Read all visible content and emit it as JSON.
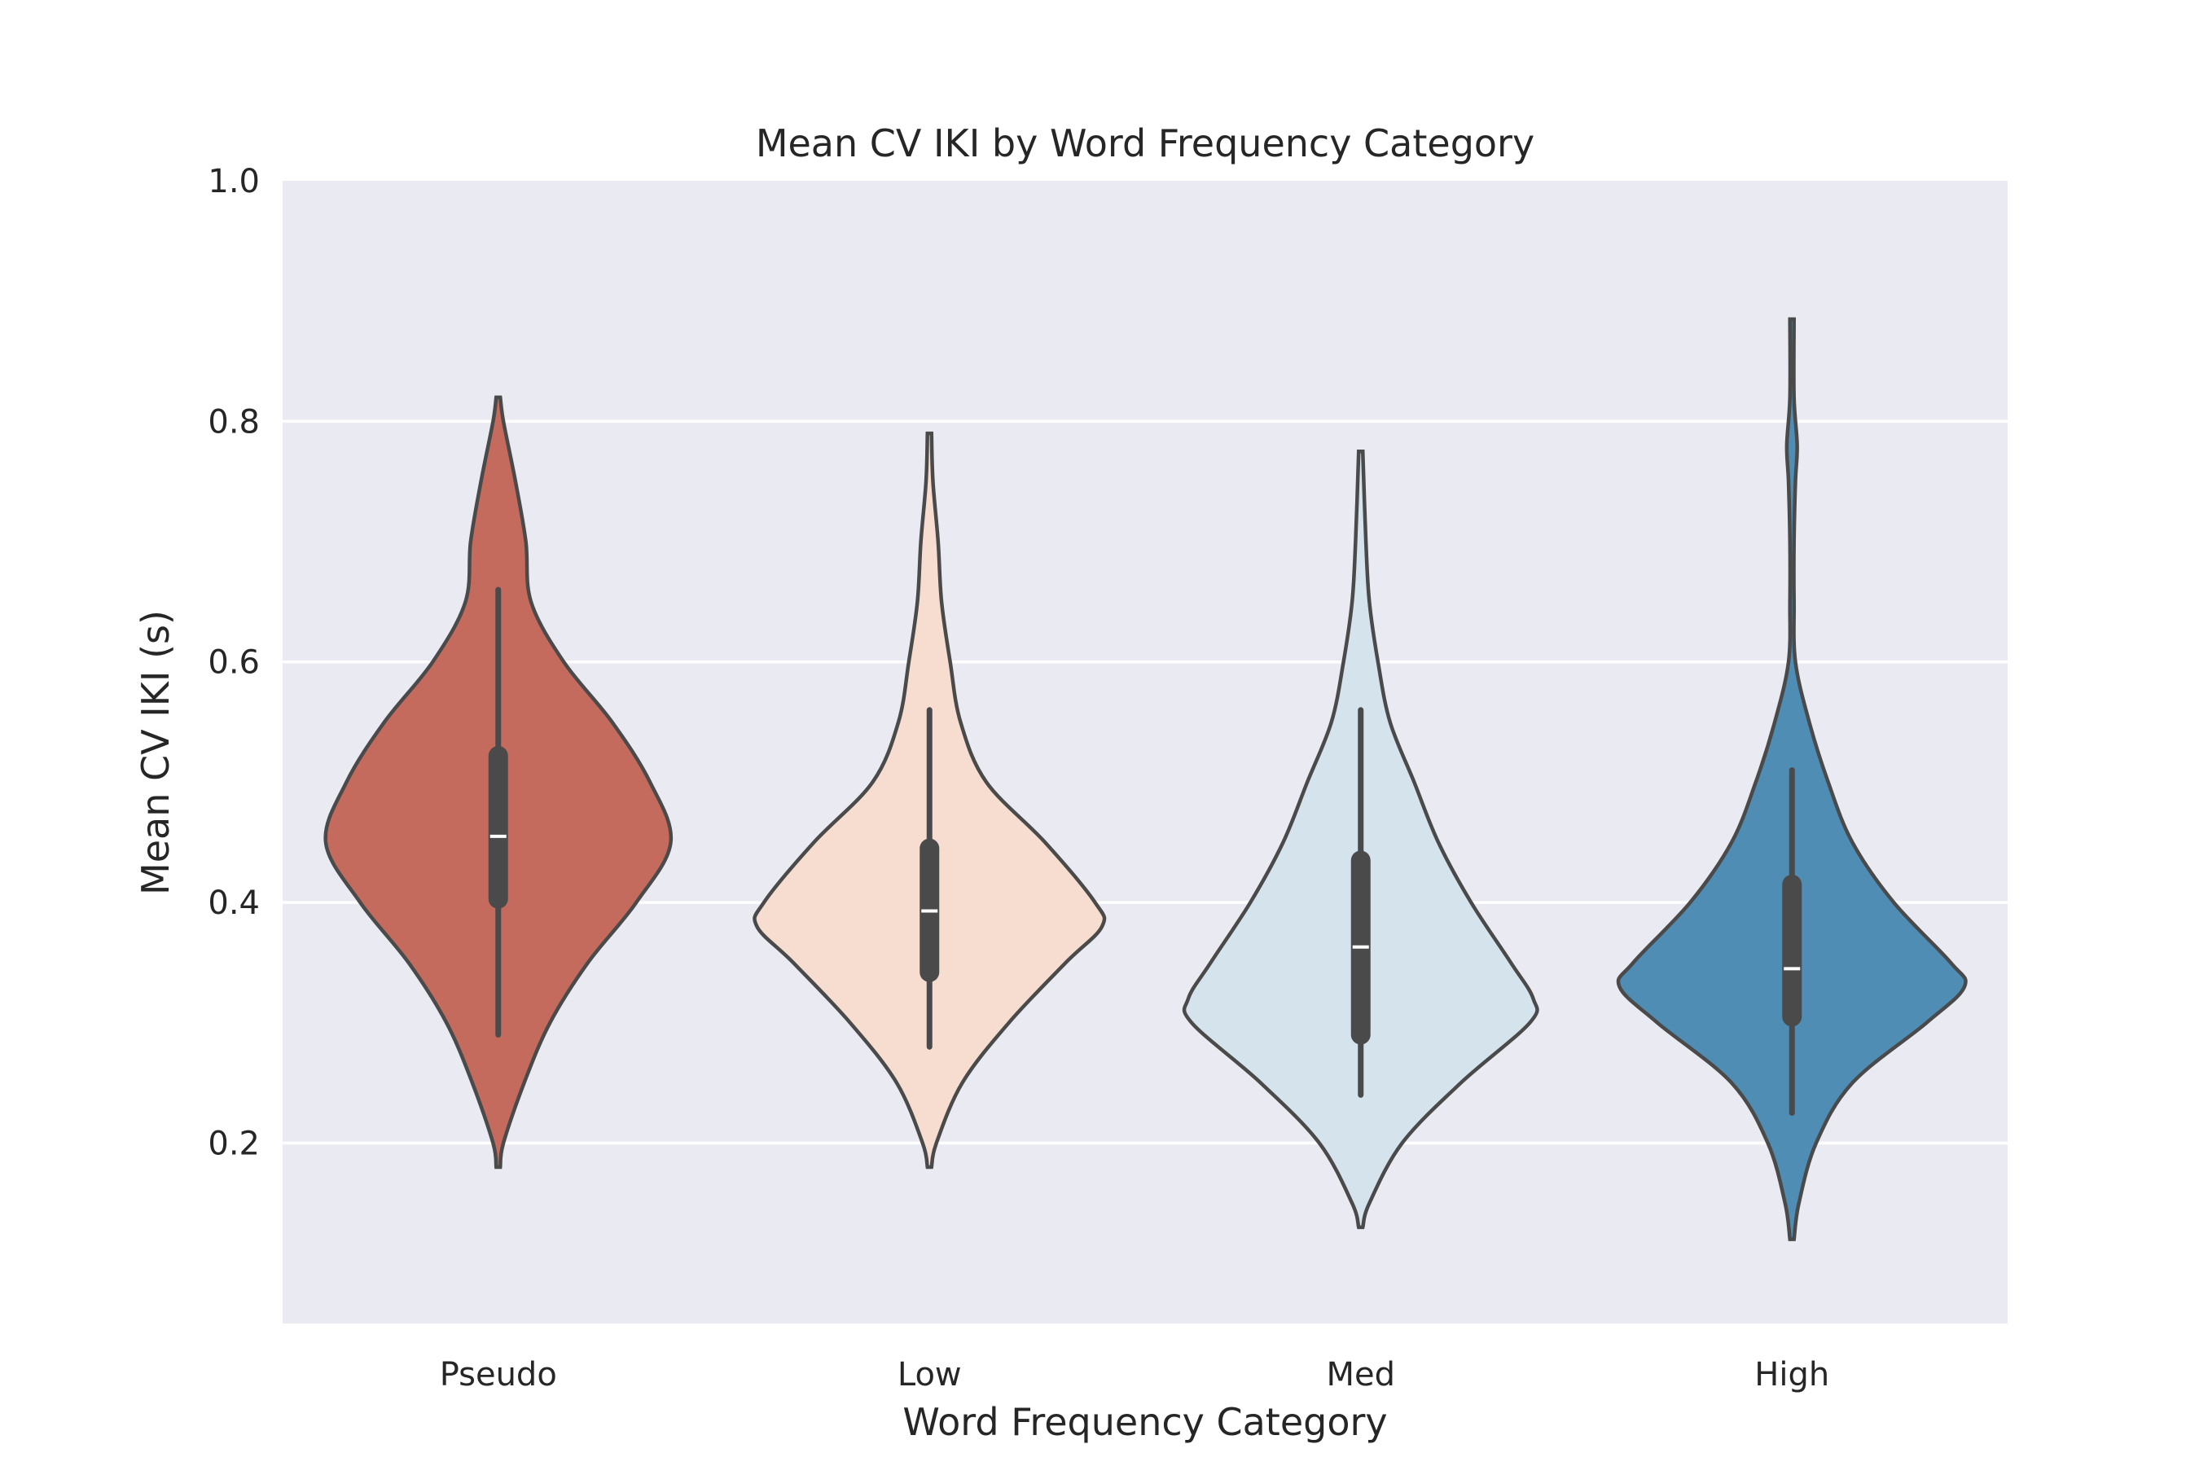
{
  "chart_data": {
    "type": "violin",
    "title": "Mean CV IKI by Word Frequency Category",
    "xlabel": "Word Frequency Category",
    "ylabel": "Mean CV IKI (s)",
    "ylim": [
      0.05,
      1.0
    ],
    "yticks": [
      "0.2",
      "0.4",
      "0.6",
      "0.8",
      "1.0"
    ],
    "yticks_values": [
      0.2,
      0.4,
      0.6,
      0.8,
      1.0
    ],
    "grid": true,
    "legend": "none",
    "categories": [
      "Pseudo",
      "Low",
      "Med",
      "High"
    ],
    "series": [
      {
        "category": "Pseudo",
        "color": "#c46b5e",
        "min": 0.18,
        "max": 0.82,
        "whisker_low": 0.29,
        "whisker_high": 0.66,
        "q1": 0.403,
        "median": 0.455,
        "q3": 0.522,
        "density": [
          [
            0.18,
            0.0
          ],
          [
            0.2,
            0.03
          ],
          [
            0.25,
            0.15
          ],
          [
            0.3,
            0.3
          ],
          [
            0.35,
            0.52
          ],
          [
            0.4,
            0.8
          ],
          [
            0.45,
            1.0
          ],
          [
            0.5,
            0.88
          ],
          [
            0.55,
            0.66
          ],
          [
            0.6,
            0.38
          ],
          [
            0.65,
            0.19
          ],
          [
            0.7,
            0.16
          ],
          [
            0.75,
            0.1
          ],
          [
            0.8,
            0.03
          ],
          [
            0.82,
            0.0
          ]
        ]
      },
      {
        "category": "Low",
        "color": "#f6ddd0",
        "min": 0.18,
        "max": 0.79,
        "whisker_low": 0.28,
        "whisker_high": 0.56,
        "q1": 0.342,
        "median": 0.393,
        "q3": 0.445,
        "density": [
          [
            0.18,
            0.0
          ],
          [
            0.2,
            0.04
          ],
          [
            0.25,
            0.19
          ],
          [
            0.3,
            0.46
          ],
          [
            0.35,
            0.79
          ],
          [
            0.38,
            1.0
          ],
          [
            0.4,
            0.96
          ],
          [
            0.45,
            0.67
          ],
          [
            0.5,
            0.33
          ],
          [
            0.55,
            0.18
          ],
          [
            0.6,
            0.12
          ],
          [
            0.65,
            0.07
          ],
          [
            0.7,
            0.05
          ],
          [
            0.75,
            0.02
          ],
          [
            0.79,
            0.0
          ]
        ]
      },
      {
        "category": "Med",
        "color": "#d5e3ec",
        "min": 0.13,
        "max": 0.775,
        "whisker_low": 0.24,
        "whisker_high": 0.56,
        "q1": 0.29,
        "median": 0.363,
        "q3": 0.435,
        "density": [
          [
            0.13,
            0.0
          ],
          [
            0.15,
            0.05
          ],
          [
            0.2,
            0.24
          ],
          [
            0.25,
            0.58
          ],
          [
            0.3,
            0.98
          ],
          [
            0.32,
            1.0
          ],
          [
            0.35,
            0.87
          ],
          [
            0.4,
            0.64
          ],
          [
            0.45,
            0.45
          ],
          [
            0.5,
            0.31
          ],
          [
            0.55,
            0.17
          ],
          [
            0.6,
            0.1
          ],
          [
            0.65,
            0.05
          ],
          [
            0.7,
            0.03
          ],
          [
            0.775,
            0.0
          ]
        ]
      },
      {
        "category": "High",
        "color": "#4f8db5",
        "min": 0.12,
        "max": 0.885,
        "whisker_low": 0.225,
        "whisker_high": 0.51,
        "q1": 0.305,
        "median": 0.345,
        "q3": 0.415,
        "density": [
          [
            0.12,
            0.0
          ],
          [
            0.15,
            0.04
          ],
          [
            0.2,
            0.14
          ],
          [
            0.25,
            0.35
          ],
          [
            0.3,
            0.78
          ],
          [
            0.33,
            1.0
          ],
          [
            0.35,
            0.92
          ],
          [
            0.4,
            0.59
          ],
          [
            0.45,
            0.35
          ],
          [
            0.5,
            0.21
          ],
          [
            0.55,
            0.1
          ],
          [
            0.6,
            0.02
          ],
          [
            0.65,
            0.01
          ],
          [
            0.7,
            0.01
          ],
          [
            0.75,
            0.02
          ],
          [
            0.78,
            0.03
          ],
          [
            0.82,
            0.01
          ],
          [
            0.885,
            0.0
          ]
        ]
      }
    ]
  }
}
